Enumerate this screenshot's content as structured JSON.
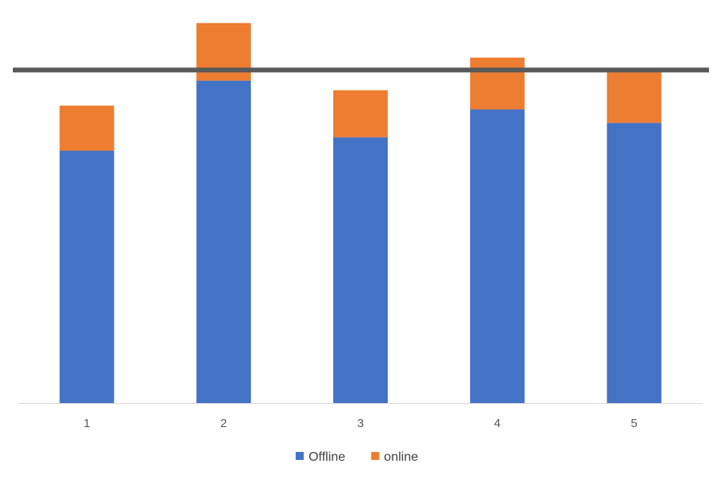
{
  "chart_data": {
    "type": "bar",
    "stacked": true,
    "categories": [
      "1",
      "2",
      "3",
      "4",
      "5"
    ],
    "series": [
      {
        "name": "Offline",
        "color": "#4472C4",
        "values": [
          263,
          336,
          277,
          306,
          292
        ]
      },
      {
        "name": "online",
        "color": "#ED7D31",
        "values": [
          47,
          60,
          49,
          54,
          53
        ]
      }
    ],
    "reference_line": {
      "value": 347,
      "color": "#595959"
    },
    "ylim": [
      0,
      420
    ],
    "grid": false,
    "legend": "bottom-center",
    "xlabel": "",
    "ylabel": "",
    "title": ""
  }
}
